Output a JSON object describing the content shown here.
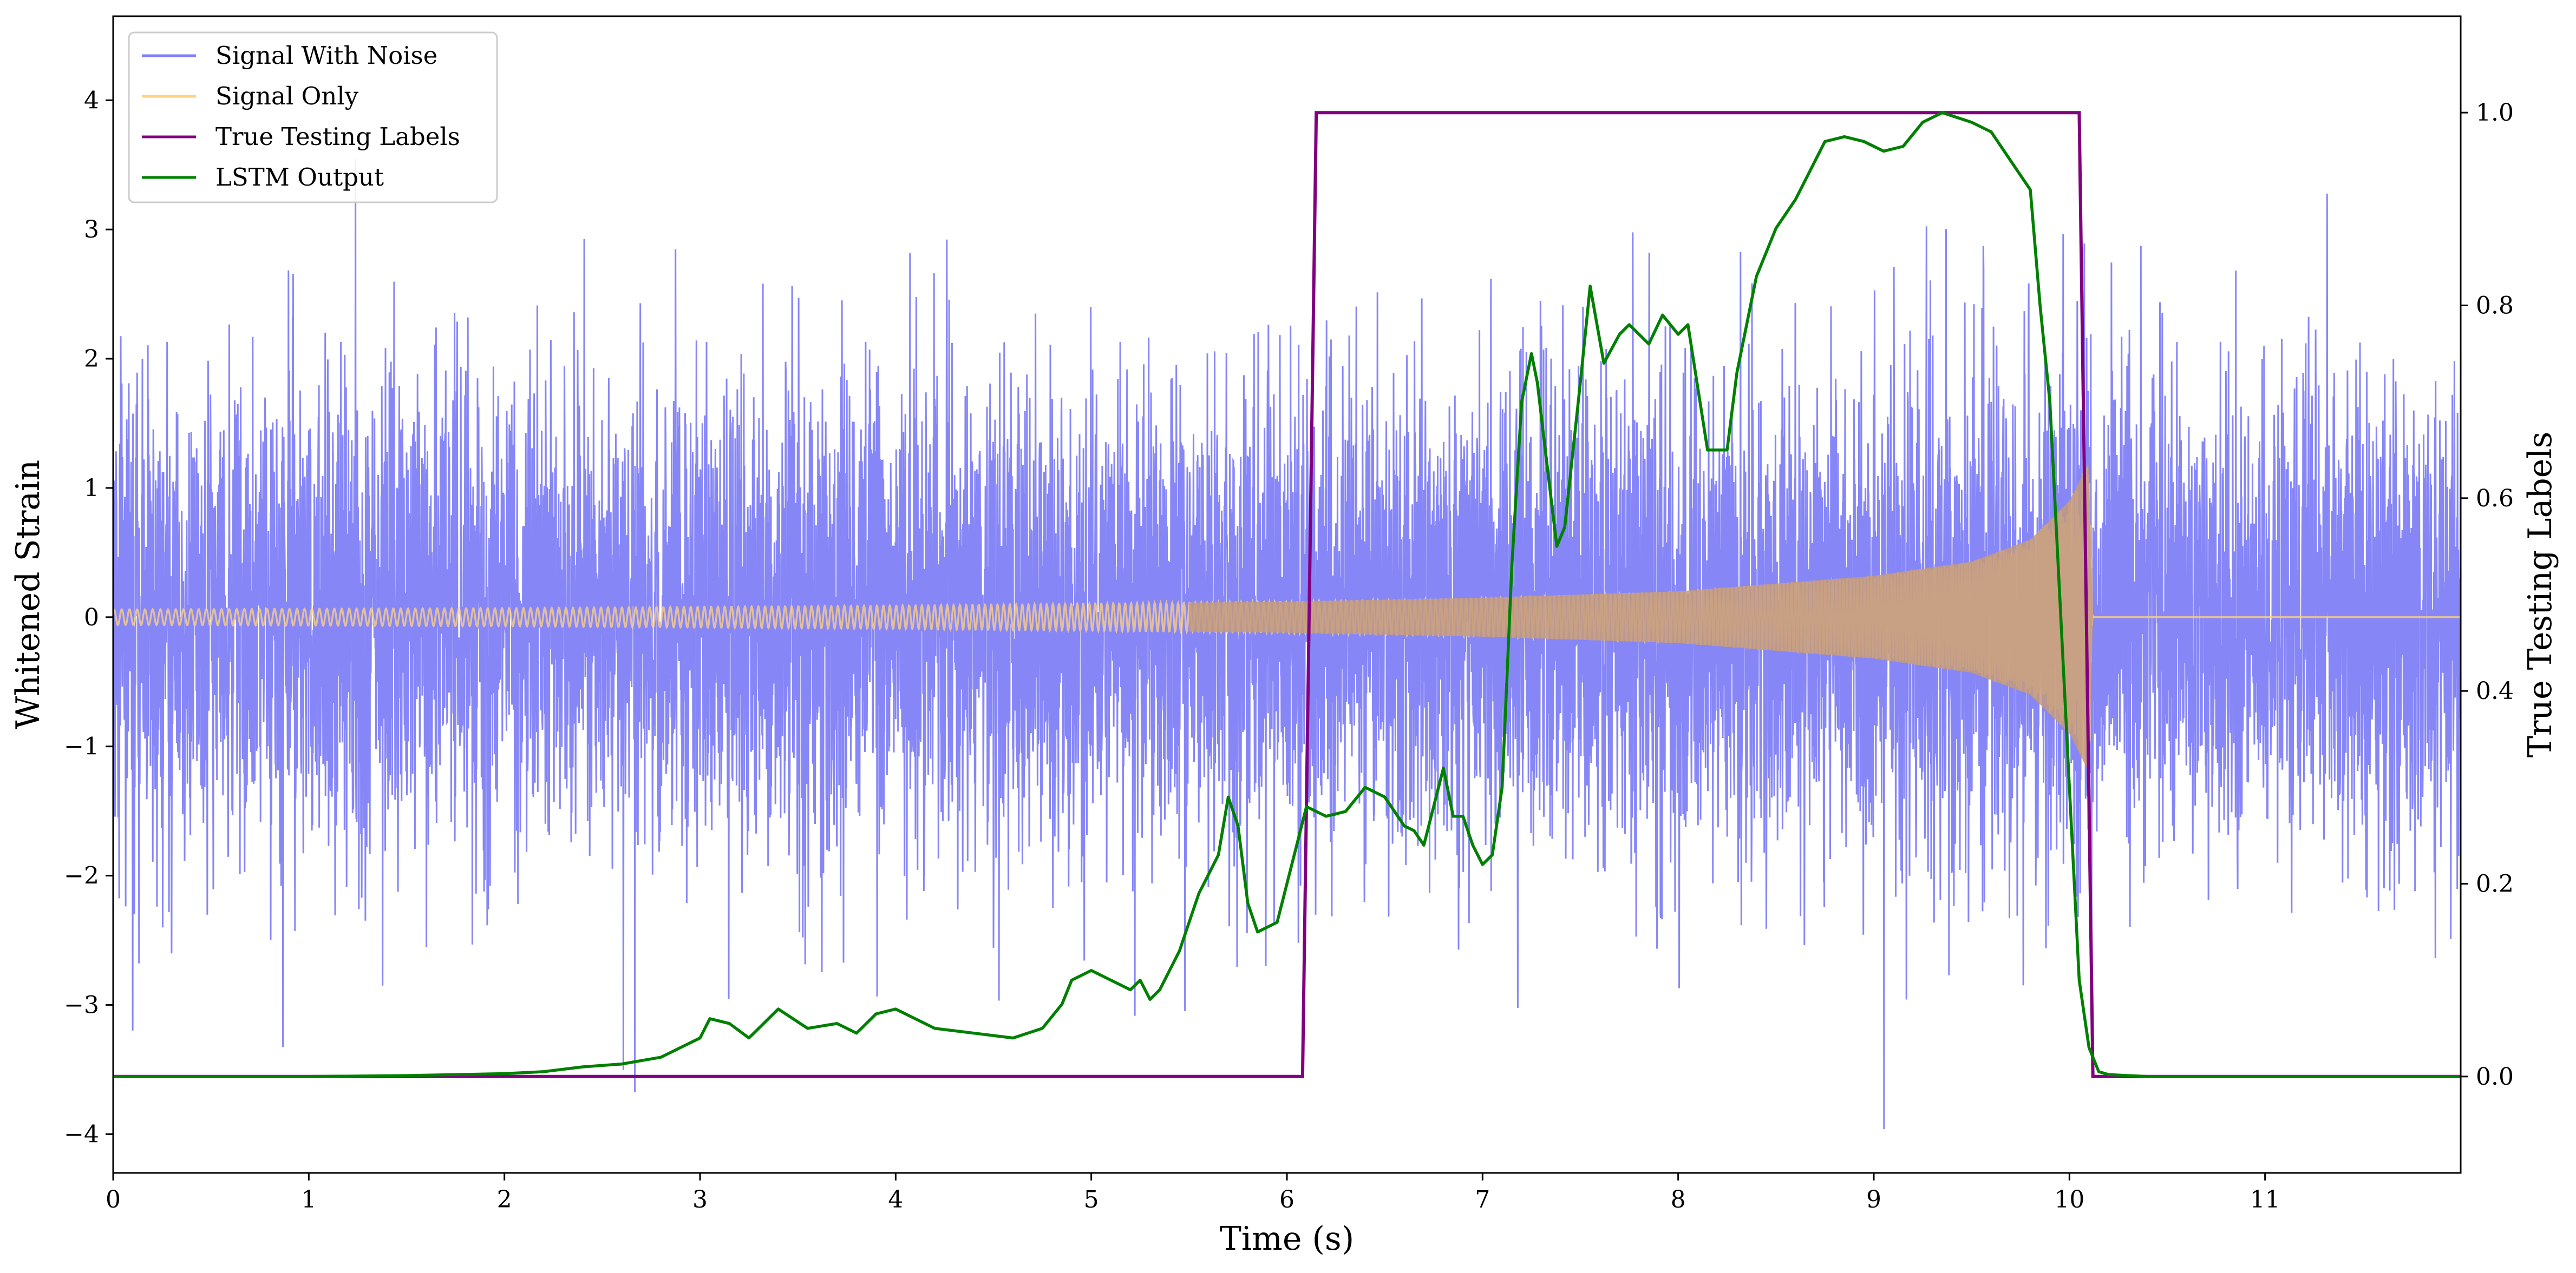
{
  "chart_data": {
    "type": "line",
    "title": "",
    "xlabel": "Time (s)",
    "ylabel": "Whitened Strain",
    "ylabel_right": "True Testing Labels",
    "xlim": [
      0,
      12
    ],
    "ylim": [
      -4.3,
      4.65
    ],
    "ylim_right": [
      -0.1,
      1.1
    ],
    "x_ticks": [
      "0",
      "1",
      "2",
      "3",
      "4",
      "5",
      "6",
      "7",
      "8",
      "9",
      "10",
      "11"
    ],
    "y_ticks": [
      "4",
      "3",
      "2",
      "1",
      "0",
      "−1",
      "−2",
      "−3",
      "−4"
    ],
    "y_ticks_right": [
      "1.0",
      "0.8",
      "0.6",
      "0.4",
      "0.2",
      "0.0"
    ],
    "grid": false,
    "legend_position": "top-left",
    "legend": [
      {
        "label": "Signal With Noise",
        "color": "#7f7ff7"
      },
      {
        "label": "Signal Only",
        "color": "#ffd27f"
      },
      {
        "label": "True Testing Labels",
        "color": "#800080"
      },
      {
        "label": "LSTM Output",
        "color": "#008000"
      }
    ],
    "series": [
      {
        "name": "Signal With Noise",
        "axis": "left",
        "color": "#7f7ff7",
        "description": "dense noisy strain, approx amplitude ±2.5 with spikes to ±4.3",
        "noise_std": 0.9,
        "min": -3.9,
        "max": 4.3
      },
      {
        "name": "Signal Only",
        "axis": "left",
        "color": "#ffd27f",
        "description": "chirp waveform with envelope growing toward merger",
        "envelope": {
          "x": [
            0,
            2,
            4,
            6,
            7,
            8,
            9,
            9.5,
            9.8,
            10,
            10.1,
            10.12,
            12
          ],
          "y": [
            0.06,
            0.07,
            0.09,
            0.12,
            0.15,
            0.2,
            0.32,
            0.43,
            0.6,
            0.9,
            1.2,
            0,
            0
          ]
        }
      },
      {
        "name": "True Testing Labels",
        "axis": "right",
        "color": "#800080",
        "x": [
          0,
          6.08,
          6.15,
          10.05,
          10.12,
          12
        ],
        "y": [
          0,
          0,
          1,
          1,
          0,
          0
        ]
      },
      {
        "name": "LSTM Output",
        "axis": "right",
        "color": "#008000",
        "x": [
          0,
          1,
          1.5,
          2,
          2.2,
          2.4,
          2.6,
          2.8,
          3.0,
          3.05,
          3.15,
          3.25,
          3.4,
          3.55,
          3.7,
          3.8,
          3.9,
          4.0,
          4.2,
          4.4,
          4.6,
          4.75,
          4.85,
          4.9,
          5.0,
          5.1,
          5.2,
          5.25,
          5.3,
          5.35,
          5.45,
          5.55,
          5.6,
          5.65,
          5.7,
          5.75,
          5.8,
          5.85,
          5.95,
          6.05,
          6.1,
          6.2,
          6.3,
          6.4,
          6.5,
          6.6,
          6.65,
          6.7,
          6.75,
          6.8,
          6.85,
          6.9,
          6.95,
          7.0,
          7.05,
          7.1,
          7.15,
          7.2,
          7.25,
          7.28,
          7.35,
          7.38,
          7.42,
          7.5,
          7.55,
          7.62,
          7.7,
          7.75,
          7.85,
          7.92,
          8.0,
          8.05,
          8.15,
          8.25,
          8.3,
          8.4,
          8.5,
          8.6,
          8.75,
          8.85,
          8.95,
          9.05,
          9.15,
          9.25,
          9.35,
          9.5,
          9.6,
          9.7,
          9.8,
          9.85,
          9.9,
          9.95,
          10.0,
          10.05,
          10.1,
          10.15,
          10.2,
          10.3,
          10.4,
          10.5,
          11,
          12
        ],
        "y": [
          0,
          0,
          0.001,
          0.003,
          0.005,
          0.01,
          0.013,
          0.02,
          0.04,
          0.06,
          0.055,
          0.04,
          0.07,
          0.05,
          0.055,
          0.045,
          0.065,
          0.07,
          0.05,
          0.045,
          0.04,
          0.05,
          0.075,
          0.1,
          0.11,
          0.1,
          0.09,
          0.1,
          0.08,
          0.09,
          0.13,
          0.19,
          0.21,
          0.23,
          0.29,
          0.26,
          0.18,
          0.15,
          0.16,
          0.24,
          0.28,
          0.27,
          0.275,
          0.3,
          0.29,
          0.26,
          0.255,
          0.24,
          0.28,
          0.32,
          0.27,
          0.27,
          0.24,
          0.22,
          0.23,
          0.3,
          0.53,
          0.7,
          0.75,
          0.72,
          0.6,
          0.55,
          0.57,
          0.72,
          0.82,
          0.74,
          0.77,
          0.78,
          0.76,
          0.79,
          0.77,
          0.78,
          0.65,
          0.65,
          0.73,
          0.83,
          0.88,
          0.91,
          0.97,
          0.975,
          0.97,
          0.96,
          0.965,
          0.99,
          1.0,
          0.99,
          0.98,
          0.95,
          0.92,
          0.8,
          0.7,
          0.5,
          0.3,
          0.1,
          0.03,
          0.005,
          0.002,
          0.001,
          0,
          0,
          0,
          0
        ]
      }
    ]
  }
}
